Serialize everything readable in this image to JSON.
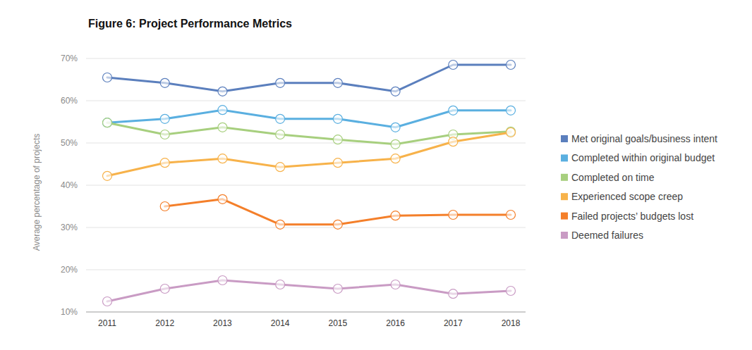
{
  "chart_data": {
    "type": "line",
    "title": "Figure 6: Project Performance Metrics",
    "y_label": "Average percentage of projects",
    "categories": [
      "2011",
      "2012",
      "2013",
      "2014",
      "2015",
      "2016",
      "2017",
      "2018"
    ],
    "ylim": [
      10,
      70
    ],
    "yticks": [
      {
        "value": 10,
        "label": "10%"
      },
      {
        "value": 20,
        "label": "20%"
      },
      {
        "value": 30,
        "label": "30%"
      },
      {
        "value": 40,
        "label": "40%"
      },
      {
        "value": 50,
        "label": "50%"
      },
      {
        "value": 60,
        "label": "60%"
      },
      {
        "value": 70,
        "label": "70%"
      }
    ],
    "grid": true,
    "legend": "right",
    "marker": "circle",
    "series": [
      {
        "name": "Met original goals/business intent",
        "color": "#5b7fbd",
        "values": [
          65.5,
          64.2,
          62.2,
          64.2,
          64.2,
          62.2,
          68.5,
          68.5
        ]
      },
      {
        "name": "Completed within original budget",
        "color": "#5aafe0",
        "values": [
          54.8,
          55.7,
          57.8,
          55.7,
          55.7,
          53.7,
          57.7,
          57.7
        ]
      },
      {
        "name": "Completed on time",
        "color": "#a7cf7e",
        "values": [
          54.8,
          52.0,
          53.7,
          52.0,
          50.8,
          49.7,
          52.0,
          52.7
        ]
      },
      {
        "name": "Experienced scope creep",
        "color": "#f7b24a",
        "values": [
          42.2,
          45.3,
          46.3,
          44.3,
          45.3,
          46.3,
          50.3,
          52.5
        ]
      },
      {
        "name": "Failed projects’ budgets lost",
        "color": "#f47f2a",
        "values": [
          null,
          35.0,
          36.7,
          30.7,
          30.7,
          32.8,
          33.0,
          33.0
        ]
      },
      {
        "name": "Deemed failures",
        "color": "#c99bc4",
        "values": [
          12.5,
          15.5,
          17.5,
          16.5,
          15.5,
          16.5,
          14.3,
          15.0
        ]
      }
    ]
  }
}
